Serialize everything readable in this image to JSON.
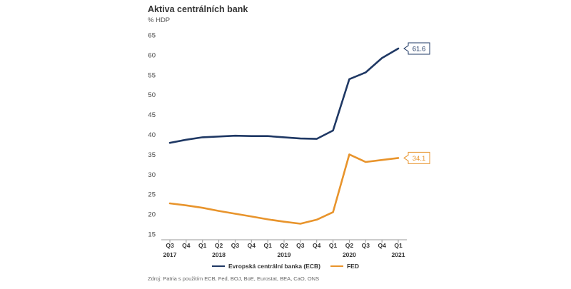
{
  "chart_data": {
    "type": "line",
    "title": "Aktiva centrálních bank",
    "subtitle": "% HDP",
    "source": "Zdroj: Patria s použitím ECB, Fed, BOJ, BoE, Eurostat, BEA, CaO, ONS",
    "ylim": [
      15,
      65
    ],
    "yticks": [
      15,
      20,
      25,
      30,
      35,
      40,
      45,
      50,
      55,
      60,
      65
    ],
    "grid": false,
    "legend_position": "bottom",
    "categories": [
      "Q3",
      "Q4",
      "Q1",
      "Q2",
      "Q3",
      "Q4",
      "Q1",
      "Q2",
      "Q3",
      "Q4",
      "Q1",
      "Q2",
      "Q3",
      "Q4",
      "Q1"
    ],
    "year_labels": [
      {
        "index": 0,
        "label": "2017"
      },
      {
        "index": 3,
        "label": "2018"
      },
      {
        "index": 7,
        "label": "2019"
      },
      {
        "index": 11,
        "label": "2020"
      },
      {
        "index": 14,
        "label": "2021"
      }
    ],
    "series": [
      {
        "name": "Evropská centrální banka (ECB)",
        "color": "#1f3864",
        "values": [
          37.9,
          38.7,
          39.3,
          39.5,
          39.7,
          39.6,
          39.6,
          39.3,
          39.0,
          38.9,
          41.0,
          53.9,
          55.6,
          59.2,
          61.6
        ],
        "end_label": "61.6"
      },
      {
        "name": "FED",
        "color": "#e8942c",
        "values": [
          22.7,
          22.2,
          21.6,
          20.8,
          20.1,
          19.4,
          18.7,
          18.1,
          17.6,
          18.6,
          20.5,
          35.0,
          33.1,
          33.6,
          34.1
        ],
        "end_label": "34.1"
      }
    ]
  }
}
